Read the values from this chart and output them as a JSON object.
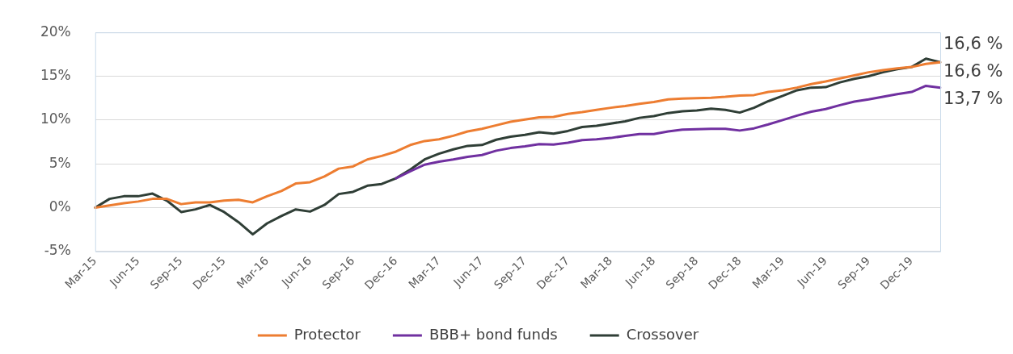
{
  "chart_data": {
    "type": "line",
    "categories": [
      "Mar-15",
      null,
      null,
      "Jun-15",
      null,
      null,
      "Sep-15",
      null,
      null,
      "Dec-15",
      null,
      null,
      "Mar-16",
      null,
      null,
      "Jun-16",
      null,
      null,
      "Sep-16",
      null,
      null,
      "Dec-16",
      null,
      null,
      "Mar-17",
      null,
      null,
      "Jun-17",
      null,
      null,
      "Sep-17",
      null,
      null,
      "Dec-17",
      null,
      null,
      "Mar-18",
      null,
      null,
      "Jun-18",
      null,
      null,
      "Sep-18",
      null,
      null,
      "Dec-18",
      null,
      null,
      "Mar-19",
      null,
      null,
      "Jun-19",
      null,
      null,
      "Sep-19",
      null,
      null,
      "Dec-19",
      null,
      null
    ],
    "series": [
      {
        "name": "Protector",
        "color": "#ed7d31",
        "values": [
          0,
          0.25,
          0.5,
          0.7,
          1.0,
          1.0,
          0.4,
          0.6,
          0.6,
          0.8,
          0.9,
          0.6,
          1.3,
          1.9,
          2.75,
          2.9,
          3.55,
          4.45,
          4.7,
          5.5,
          5.9,
          6.4,
          7.15,
          7.6,
          7.8,
          8.2,
          8.7,
          9.0,
          9.4,
          9.8,
          10.05,
          10.3,
          10.35,
          10.7,
          10.9,
          11.15,
          11.4,
          11.6,
          11.85,
          12.05,
          12.35,
          12.45,
          12.5,
          12.55,
          12.65,
          12.8,
          12.85,
          13.2,
          13.4,
          13.7,
          14.1,
          14.4,
          14.75,
          15.1,
          15.45,
          15.7,
          15.9,
          16.05,
          16.4,
          16.6
        ],
        "value_labels": [
          null,
          null,
          null,
          null,
          null,
          null,
          null,
          null,
          null,
          null,
          null,
          null,
          null,
          null,
          null,
          null,
          null,
          null,
          null,
          null,
          null,
          null,
          null,
          null,
          null,
          null,
          null,
          null,
          null,
          null,
          null,
          null,
          null,
          null,
          null,
          null,
          null,
          null,
          null,
          null,
          null,
          null,
          null,
          null,
          null,
          null,
          null,
          null,
          null,
          null,
          null,
          null,
          null,
          null,
          null,
          null,
          null,
          null,
          null,
          "16,6 %"
        ]
      },
      {
        "name": "BBB+ bond funds",
        "color": "#7030a0",
        "values": [
          null,
          null,
          null,
          null,
          null,
          null,
          null,
          null,
          null,
          null,
          null,
          null,
          null,
          null,
          null,
          null,
          null,
          null,
          null,
          null,
          null,
          3.35,
          4.15,
          4.9,
          5.25,
          5.5,
          5.8,
          6.0,
          6.5,
          6.8,
          7.0,
          7.25,
          7.2,
          7.4,
          7.7,
          7.8,
          7.95,
          8.2,
          8.4,
          8.4,
          8.7,
          8.9,
          8.95,
          9.0,
          9.0,
          8.8,
          9.05,
          9.5,
          10.0,
          10.5,
          10.95,
          11.25,
          11.7,
          12.1,
          12.35,
          12.65,
          12.95,
          13.2,
          13.9,
          13.7
        ],
        "value_labels": [
          null,
          null,
          null,
          null,
          null,
          null,
          null,
          null,
          null,
          null,
          null,
          null,
          null,
          null,
          null,
          null,
          null,
          null,
          null,
          null,
          null,
          null,
          null,
          null,
          null,
          null,
          null,
          null,
          null,
          null,
          null,
          null,
          null,
          null,
          null,
          null,
          null,
          null,
          null,
          null,
          null,
          null,
          null,
          null,
          null,
          null,
          null,
          null,
          null,
          null,
          null,
          null,
          null,
          null,
          null,
          null,
          null,
          null,
          null,
          "13,7 %"
        ]
      },
      {
        "name": "Crossover",
        "color": "#2f3e36",
        "values": [
          0,
          1.0,
          1.3,
          1.3,
          1.6,
          0.8,
          -0.5,
          -0.2,
          0.3,
          -0.5,
          -1.65,
          -3.05,
          -1.8,
          -0.95,
          -0.2,
          -0.45,
          0.3,
          1.55,
          1.8,
          2.5,
          2.7,
          3.35,
          4.35,
          5.5,
          6.15,
          6.65,
          7.05,
          7.15,
          7.75,
          8.1,
          8.3,
          8.6,
          8.45,
          8.75,
          9.2,
          9.35,
          9.6,
          9.85,
          10.25,
          10.45,
          10.8,
          11.0,
          11.1,
          11.3,
          11.15,
          10.85,
          11.4,
          12.15,
          12.75,
          13.4,
          13.7,
          13.75,
          14.3,
          14.7,
          15.0,
          15.45,
          15.8,
          16.05,
          17.0,
          16.6
        ],
        "value_labels": [
          null,
          null,
          null,
          null,
          null,
          null,
          null,
          null,
          null,
          null,
          null,
          null,
          null,
          null,
          null,
          null,
          null,
          null,
          null,
          null,
          null,
          null,
          null,
          null,
          null,
          null,
          null,
          null,
          null,
          null,
          null,
          null,
          null,
          null,
          null,
          null,
          null,
          null,
          null,
          null,
          null,
          null,
          null,
          null,
          null,
          null,
          null,
          null,
          null,
          null,
          null,
          null,
          null,
          null,
          null,
          null,
          null,
          null,
          null,
          "16,6 %"
        ]
      }
    ],
    "ylim": [
      -5,
      20
    ],
    "yticks": [
      {
        "value": -5,
        "label": "-5%"
      },
      {
        "value": 0,
        "label": "0%"
      },
      {
        "value": 5,
        "label": "5%"
      },
      {
        "value": 10,
        "label": "10%"
      },
      {
        "value": 15,
        "label": "15%"
      },
      {
        "value": 20,
        "label": "20%"
      }
    ],
    "grid": "y",
    "legend": "bottom",
    "marker": "none",
    "line_style": "solid"
  }
}
